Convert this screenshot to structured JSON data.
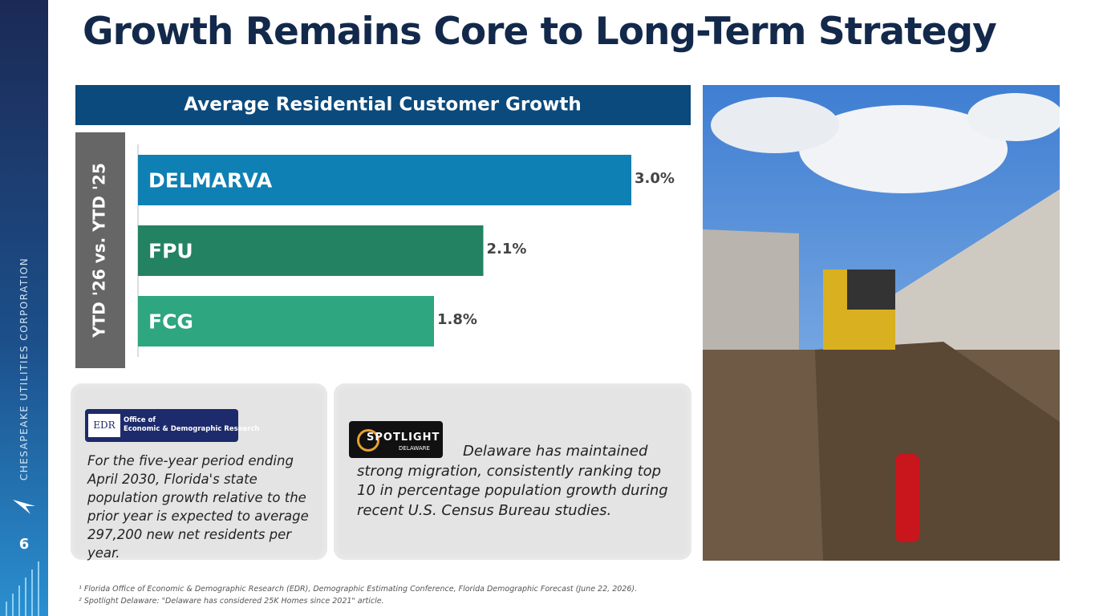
{
  "title": "Growth Remains Core to Long-Term Strategy",
  "sidebar": {
    "company": "CHESAPEAKE UTILITIES CORPORATION",
    "page": "6"
  },
  "chart_data": {
    "type": "bar",
    "orientation": "horizontal",
    "title": "Average Residential Customer Growth",
    "y_label": "YTD '26 vs. YTD '25",
    "categories": [
      "DELMARVA",
      "FPU",
      "FCG"
    ],
    "values": [
      3.0,
      2.1,
      1.8
    ],
    "value_labels": [
      "3.0%",
      "2.1%",
      "1.8%"
    ],
    "colors": [
      "#0f80b4",
      "#238262",
      "#2ea680"
    ]
  },
  "notes": [
    {
      "logo": [
        "EDR",
        "Office of",
        "Economic & Demographic Research"
      ],
      "text": "For the five-year period ending April 2030, Florida's state population growth relative to the prior year is expected to average 297,200 new net residents per year."
    },
    {
      "logo": [
        "SPOTLIGHT",
        "DELAWARE"
      ],
      "text": "Delaware has maintained strong migration, consistently ranking top 10 in percentage population growth during recent U.S. Census Bureau studies."
    }
  ],
  "footnotes": [
    "¹ Florida Office of Economic & Demographic Research (EDR), Demographic Estimating Conference, Florida Demographic Forecast (June 22, 2026).",
    "² Spotlight Delaware: \"Delaware has considered 25K Homes since 2021\" article."
  ]
}
